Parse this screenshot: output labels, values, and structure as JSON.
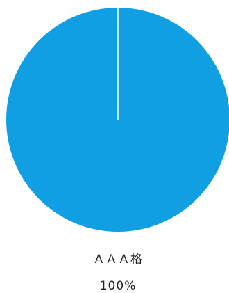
{
  "chart_data": {
    "type": "pie",
    "slices": [
      {
        "label": "ＡＡＡ格",
        "value": 100,
        "display": "100%"
      }
    ],
    "colors": [
      "#119fe4"
    ],
    "separator_color": "#ffffff"
  }
}
